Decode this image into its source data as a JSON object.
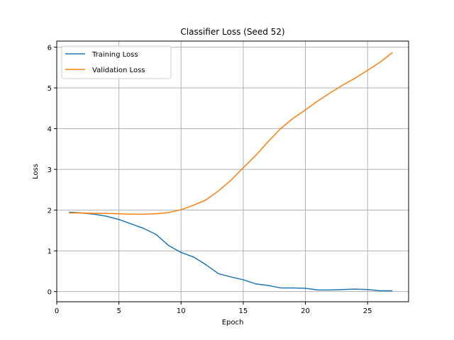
{
  "chart_data": {
    "type": "line",
    "title": "Classifier Loss (Seed 52)",
    "xlabel": "Epoch",
    "ylabel": "Loss",
    "xlim": [
      0,
      28.3
    ],
    "ylim": [
      -0.25,
      6.15
    ],
    "xticks": [
      0,
      5,
      10,
      15,
      20,
      25
    ],
    "yticks": [
      0,
      1,
      2,
      3,
      4,
      5,
      6
    ],
    "grid": true,
    "legend_position": "top-left",
    "x": [
      1,
      2,
      3,
      4,
      5,
      6,
      7,
      8,
      9,
      10,
      11,
      12,
      13,
      14,
      15,
      16,
      17,
      18,
      19,
      20,
      21,
      22,
      23,
      24,
      25,
      26,
      27
    ],
    "series": [
      {
        "name": "Training Loss",
        "color": "#1f77b4",
        "values": [
          1.95,
          1.93,
          1.9,
          1.85,
          1.77,
          1.66,
          1.55,
          1.4,
          1.13,
          0.96,
          0.85,
          0.66,
          0.44,
          0.36,
          0.29,
          0.19,
          0.15,
          0.09,
          0.09,
          0.08,
          0.04,
          0.04,
          0.05,
          0.06,
          0.05,
          0.02,
          0.02
        ]
      },
      {
        "name": "Validation Loss",
        "color": "#ff7f0e",
        "values": [
          1.93,
          1.93,
          1.92,
          1.92,
          1.91,
          1.9,
          1.9,
          1.91,
          1.94,
          2.01,
          2.12,
          2.25,
          2.47,
          2.73,
          3.04,
          3.34,
          3.68,
          4.0,
          4.25,
          4.46,
          4.68,
          4.88,
          5.07,
          5.24,
          5.43,
          5.63,
          5.87
        ]
      }
    ]
  }
}
